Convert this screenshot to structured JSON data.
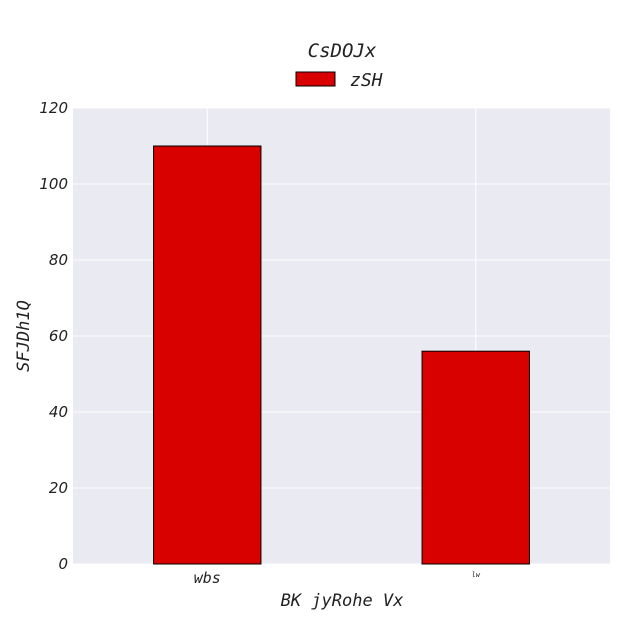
{
  "chart_data": {
    "type": "bar",
    "title": "CsDOJx",
    "xlabel": "BK jyRohe  Vx",
    "ylabel": "SFJDh1Q",
    "categories": [
      "wbs",
      "lw"
    ],
    "series": [
      {
        "name": "zSH",
        "values": [
          110,
          56
        ],
        "color": "#d90000"
      }
    ],
    "ylim": [
      0,
      120
    ],
    "yticks": [
      0,
      20,
      40,
      60,
      80,
      100,
      120
    ],
    "grid": true,
    "legend_position": "top-center",
    "background_color": "#eaeaf2",
    "grid_color": "#ffffff",
    "edge_color": "#000000"
  }
}
